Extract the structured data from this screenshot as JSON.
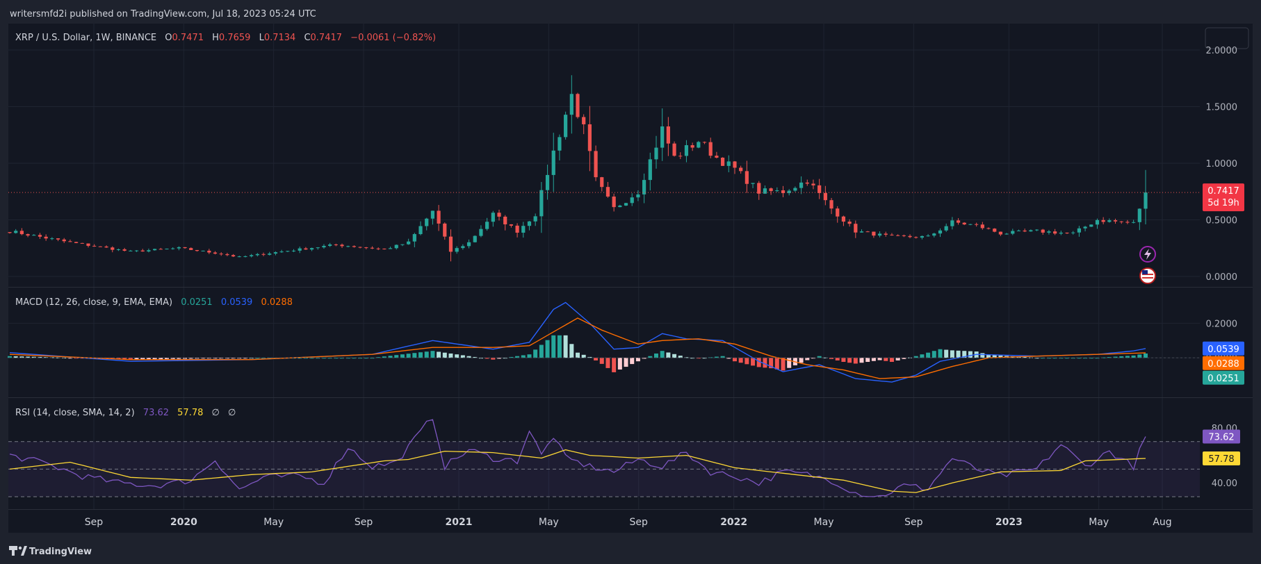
{
  "header": {
    "publisher_line": "writersmfd2i published on TradingView.com, Jul 18, 2023 05:24 UTC",
    "brand": "TradingView"
  },
  "legend": {
    "symbol": "XRP / U.S. Dollar, 1W, BINANCE",
    "o_label": "O",
    "o_value": "0.7471",
    "h_label": "H",
    "h_value": "0.7659",
    "l_label": "L",
    "l_value": "0.7134",
    "c_label": "C",
    "c_value": "0.7417",
    "change": "−0.0061 (−0.82%)"
  },
  "price_axis": {
    "ticks": [
      "2.0000",
      "1.5000",
      "1.0000",
      "0.5000",
      "0.0000"
    ],
    "last_price": "0.7417",
    "countdown": "5d 19h"
  },
  "macd_panel": {
    "title": "MACD (12, 26, close, 9, EMA, EMA)",
    "hist_value": "0.0251",
    "macd_value": "0.0539",
    "signal_value": "0.0288",
    "axis_ticks": [
      "0.2000",
      "0.0000"
    ]
  },
  "rsi_panel": {
    "title": "RSI (14, close, SMA, 14, 2)",
    "rsi_value": "73.62",
    "sma_value": "57.78",
    "empty_1": "∅",
    "empty_2": "∅",
    "axis_ticks": [
      "80.00",
      "40.00"
    ]
  },
  "time_axis": {
    "labels": [
      "Sep",
      "2020",
      "May",
      "Sep",
      "2021",
      "May",
      "Sep",
      "2022",
      "May",
      "Sep",
      "2023",
      "May",
      "Aug"
    ]
  },
  "colors": {
    "background": "#1e222d",
    "pane": "#131722",
    "up": "#26a69a",
    "down": "#ef5350",
    "macd_line": "#2962ff",
    "signal_line": "#ff6d00",
    "rsi_line": "#7e57c2",
    "rsi_sma": "#fdd835",
    "text": "#d1d4dc"
  },
  "chart_data": {
    "type": "candlestick",
    "title": "XRP / U.S. Dollar, 1W, BINANCE",
    "x_start": "2019-06",
    "x_end": "2023-08",
    "time_labels": [
      "Sep",
      "2020",
      "May",
      "Sep",
      "2021",
      "May",
      "Sep",
      "2022",
      "May",
      "Sep",
      "2023",
      "May",
      "Aug"
    ],
    "price_ylim": [
      0,
      2.0
    ],
    "last": {
      "open": 0.7471,
      "high": 0.7659,
      "low": 0.7134,
      "close": 0.7417
    },
    "close_path": [
      [
        0,
        0.4
      ],
      [
        10,
        0.3
      ],
      [
        20,
        0.22
      ],
      [
        28,
        0.25
      ],
      [
        35,
        0.2
      ],
      [
        38,
        0.17
      ],
      [
        45,
        0.22
      ],
      [
        54,
        0.28
      ],
      [
        62,
        0.24
      ],
      [
        66,
        0.3
      ],
      [
        70,
        0.58
      ],
      [
        73,
        0.22
      ],
      [
        76,
        0.3
      ],
      [
        80,
        0.55
      ],
      [
        84,
        0.4
      ],
      [
        87,
        0.55
      ],
      [
        90,
        1.1
      ],
      [
        93,
        1.6
      ],
      [
        95,
        1.3
      ],
      [
        97,
        0.85
      ],
      [
        100,
        0.6
      ],
      [
        104,
        0.75
      ],
      [
        108,
        1.3
      ],
      [
        110,
        1.05
      ],
      [
        114,
        1.2
      ],
      [
        117,
        1.05
      ],
      [
        120,
        0.95
      ],
      [
        124,
        0.75
      ],
      [
        128,
        0.75
      ],
      [
        132,
        0.85
      ],
      [
        136,
        0.6
      ],
      [
        140,
        0.4
      ],
      [
        146,
        0.35
      ],
      [
        152,
        0.35
      ],
      [
        156,
        0.48
      ],
      [
        160,
        0.45
      ],
      [
        164,
        0.38
      ],
      [
        170,
        0.4
      ],
      [
        176,
        0.38
      ],
      [
        180,
        0.5
      ],
      [
        186,
        0.47
      ],
      [
        188,
        0.74
      ]
    ],
    "macd_ylim": [
      -0.2,
      0.35
    ],
    "macd_path": [
      [
        0,
        0.03
      ],
      [
        20,
        -0.02
      ],
      [
        40,
        -0.01
      ],
      [
        60,
        0.02
      ],
      [
        70,
        0.1
      ],
      [
        80,
        0.05
      ],
      [
        86,
        0.09
      ],
      [
        90,
        0.28
      ],
      [
        92,
        0.32
      ],
      [
        96,
        0.2
      ],
      [
        100,
        0.05
      ],
      [
        104,
        0.06
      ],
      [
        108,
        0.14
      ],
      [
        112,
        0.11
      ],
      [
        118,
        0.1
      ],
      [
        124,
        -0.02
      ],
      [
        128,
        -0.08
      ],
      [
        134,
        -0.04
      ],
      [
        140,
        -0.12
      ],
      [
        146,
        -0.14
      ],
      [
        150,
        -0.1
      ],
      [
        154,
        -0.02
      ],
      [
        160,
        0.02
      ],
      [
        170,
        0.01
      ],
      [
        180,
        0.02
      ],
      [
        186,
        0.04
      ],
      [
        188,
        0.0539
      ]
    ],
    "signal_path": [
      [
        0,
        0.02
      ],
      [
        20,
        -0.01
      ],
      [
        40,
        -0.01
      ],
      [
        60,
        0.02
      ],
      [
        70,
        0.06
      ],
      [
        80,
        0.06
      ],
      [
        86,
        0.07
      ],
      [
        90,
        0.15
      ],
      [
        94,
        0.23
      ],
      [
        98,
        0.16
      ],
      [
        104,
        0.08
      ],
      [
        108,
        0.1
      ],
      [
        114,
        0.11
      ],
      [
        120,
        0.08
      ],
      [
        126,
        0.01
      ],
      [
        132,
        -0.04
      ],
      [
        138,
        -0.07
      ],
      [
        144,
        -0.12
      ],
      [
        150,
        -0.11
      ],
      [
        156,
        -0.05
      ],
      [
        162,
        0.0
      ],
      [
        170,
        0.01
      ],
      [
        180,
        0.02
      ],
      [
        188,
        0.0288
      ]
    ],
    "rsi_ylim": [
      25,
      88
    ],
    "rsi_levels": [
      70,
      50,
      30
    ],
    "rsi_path": [
      [
        0,
        60
      ],
      [
        6,
        54
      ],
      [
        12,
        45
      ],
      [
        18,
        40
      ],
      [
        24,
        38
      ],
      [
        30,
        42
      ],
      [
        34,
        57
      ],
      [
        38,
        35
      ],
      [
        42,
        44
      ],
      [
        48,
        45
      ],
      [
        52,
        40
      ],
      [
        56,
        66
      ],
      [
        60,
        52
      ],
      [
        64,
        55
      ],
      [
        70,
        88
      ],
      [
        72,
        52
      ],
      [
        76,
        64
      ],
      [
        80,
        58
      ],
      [
        84,
        56
      ],
      [
        86,
        78
      ],
      [
        88,
        60
      ],
      [
        90,
        74
      ],
      [
        92,
        58
      ],
      [
        96,
        52
      ],
      [
        100,
        48
      ],
      [
        104,
        57
      ],
      [
        108,
        52
      ],
      [
        112,
        62
      ],
      [
        116,
        48
      ],
      [
        120,
        45
      ],
      [
        124,
        40
      ],
      [
        128,
        48
      ],
      [
        132,
        46
      ],
      [
        136,
        42
      ],
      [
        140,
        33
      ],
      [
        144,
        30
      ],
      [
        148,
        38
      ],
      [
        152,
        36
      ],
      [
        156,
        58
      ],
      [
        160,
        50
      ],
      [
        164,
        45
      ],
      [
        170,
        50
      ],
      [
        174,
        68
      ],
      [
        178,
        52
      ],
      [
        182,
        63
      ],
      [
        186,
        52
      ],
      [
        188,
        73.62
      ]
    ],
    "rsi_sma_path": [
      [
        0,
        50
      ],
      [
        10,
        55
      ],
      [
        20,
        44
      ],
      [
        30,
        42
      ],
      [
        40,
        46
      ],
      [
        50,
        48
      ],
      [
        56,
        52
      ],
      [
        62,
        56
      ],
      [
        66,
        57
      ],
      [
        72,
        63
      ],
      [
        80,
        62
      ],
      [
        88,
        58
      ],
      [
        92,
        64
      ],
      [
        96,
        60
      ],
      [
        104,
        58
      ],
      [
        112,
        60
      ],
      [
        120,
        51
      ],
      [
        130,
        46
      ],
      [
        138,
        42
      ],
      [
        146,
        34
      ],
      [
        150,
        33
      ],
      [
        156,
        40
      ],
      [
        164,
        48
      ],
      [
        174,
        49
      ],
      [
        178,
        56
      ],
      [
        184,
        57
      ],
      [
        188,
        57.78
      ]
    ]
  }
}
